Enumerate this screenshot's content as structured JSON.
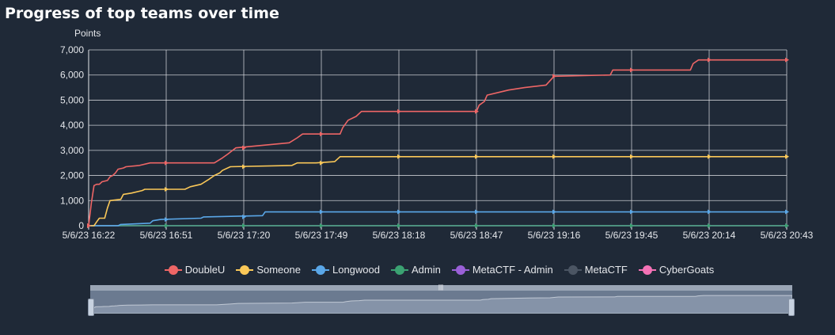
{
  "chart_data": {
    "type": "line",
    "title": "Progress of top teams over time",
    "ylabel": "Points",
    "xlabel": "",
    "ylim": [
      0,
      7000
    ],
    "y_ticks": [
      "0",
      "1,000",
      "2,000",
      "3,000",
      "4,000",
      "5,000",
      "6,000",
      "7,000"
    ],
    "x_ticks": [
      "5/6/23 16:22",
      "5/6/23 16:51",
      "5/6/23 17:20",
      "5/6/23 17:49",
      "5/6/23 18:18",
      "5/6/23 18:47",
      "5/6/23 19:16",
      "5/6/23 19:45",
      "5/6/23 20:14",
      "5/6/23 20:43"
    ],
    "x_tick_minutes": [
      0,
      29,
      58,
      87,
      116,
      145,
      174,
      203,
      232,
      261
    ],
    "grid": true,
    "legend_position": "bottom-center",
    "series": [
      {
        "name": "DoubleU",
        "color": "#ee6666",
        "points": [
          [
            0,
            0
          ],
          [
            1,
            900
          ],
          [
            2,
            1600
          ],
          [
            3,
            1650
          ],
          [
            4,
            1650
          ],
          [
            5,
            1750
          ],
          [
            7,
            1800
          ],
          [
            8,
            1950
          ],
          [
            9,
            2000
          ],
          [
            10,
            2100
          ],
          [
            11,
            2250
          ],
          [
            13,
            2300
          ],
          [
            14,
            2350
          ],
          [
            19,
            2400
          ],
          [
            23,
            2500
          ],
          [
            47,
            2500
          ],
          [
            50,
            2700
          ],
          [
            52,
            2850
          ],
          [
            55,
            3100
          ],
          [
            75,
            3300
          ],
          [
            78,
            3500
          ],
          [
            80,
            3650
          ],
          [
            94,
            3650
          ],
          [
            95,
            3900
          ],
          [
            97,
            4200
          ],
          [
            100,
            4350
          ],
          [
            102,
            4550
          ],
          [
            145,
            4550
          ],
          [
            146,
            4800
          ],
          [
            148,
            4950
          ],
          [
            149,
            5200
          ],
          [
            157,
            5400
          ],
          [
            163,
            5500
          ],
          [
            171,
            5600
          ],
          [
            174,
            5950
          ],
          [
            195,
            6000
          ],
          [
            196,
            6200
          ],
          [
            225,
            6200
          ],
          [
            226,
            6450
          ],
          [
            228,
            6600
          ],
          [
            261,
            6600
          ]
        ]
      },
      {
        "name": "Someone",
        "color": "#fac858",
        "points": [
          [
            0,
            0
          ],
          [
            2,
            0
          ],
          [
            3,
            150
          ],
          [
            4,
            300
          ],
          [
            6,
            300
          ],
          [
            7,
            700
          ],
          [
            8,
            1000
          ],
          [
            12,
            1050
          ],
          [
            13,
            1250
          ],
          [
            16,
            1300
          ],
          [
            20,
            1400
          ],
          [
            21,
            1450
          ],
          [
            36,
            1450
          ],
          [
            38,
            1550
          ],
          [
            42,
            1650
          ],
          [
            45,
            1850
          ],
          [
            47,
            2000
          ],
          [
            49,
            2100
          ],
          [
            50,
            2200
          ],
          [
            53,
            2350
          ],
          [
            76,
            2400
          ],
          [
            78,
            2500
          ],
          [
            85,
            2500
          ],
          [
            92,
            2550
          ],
          [
            94,
            2750
          ],
          [
            261,
            2750
          ]
        ]
      },
      {
        "name": "Longwood",
        "color": "#5aa7e8",
        "points": [
          [
            0,
            0
          ],
          [
            11,
            0
          ],
          [
            12,
            50
          ],
          [
            23,
            100
          ],
          [
            24,
            200
          ],
          [
            27,
            250
          ],
          [
            42,
            300
          ],
          [
            43,
            350
          ],
          [
            65,
            400
          ],
          [
            66,
            550
          ],
          [
            261,
            550
          ]
        ]
      },
      {
        "name": "Admin",
        "color": "#3ba272",
        "points": [
          [
            0,
            0
          ],
          [
            261,
            0
          ]
        ]
      },
      {
        "name": "MetaCTF - Admin",
        "color": "#9a60d8",
        "points": [
          [
            0,
            0
          ],
          [
            261,
            0
          ]
        ]
      },
      {
        "name": "MetaCTF",
        "color": "#4b5563",
        "points": [
          [
            0,
            0
          ],
          [
            261,
            0
          ]
        ]
      },
      {
        "name": "CyberGoats",
        "color": "#f472b6",
        "points": [
          [
            0,
            0
          ],
          [
            261,
            0
          ]
        ]
      }
    ]
  }
}
